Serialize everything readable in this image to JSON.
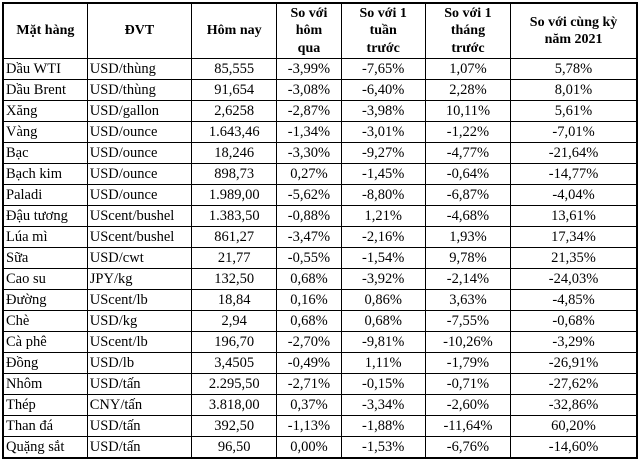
{
  "table": {
    "headers": [
      "Mặt hàng",
      "ĐVT",
      "Hôm nay",
      "So với\nhôm\nqua",
      "So với 1\ntuần\ntrước",
      "So với 1\ntháng\ntrước",
      "So với cùng kỳ\nnăm 2021"
    ],
    "rows": [
      {
        "name": "Dầu WTI",
        "unit": "USD/thùng",
        "today": "85,555",
        "vs_yesterday": "-3,99%",
        "vs_week": "-7,65%",
        "vs_month": "1,07%",
        "vs_2021": "5,78%"
      },
      {
        "name": "Dầu Brent",
        "unit": "USD/thùng",
        "today": "91,654",
        "vs_yesterday": "-3,08%",
        "vs_week": "-6,40%",
        "vs_month": "2,28%",
        "vs_2021": "8,01%"
      },
      {
        "name": "Xăng",
        "unit": "USD/gallon",
        "today": "2,6258",
        "vs_yesterday": "-2,87%",
        "vs_week": "-3,98%",
        "vs_month": "10,11%",
        "vs_2021": "5,61%"
      },
      {
        "name": "Vàng",
        "unit": "USD/ounce",
        "today": "1.643,46",
        "vs_yesterday": "-1,34%",
        "vs_week": "-3,01%",
        "vs_month": "-1,22%",
        "vs_2021": "-7,01%"
      },
      {
        "name": "Bạc",
        "unit": "USD/ounce",
        "today": "18,246",
        "vs_yesterday": "-3,30%",
        "vs_week": "-9,27%",
        "vs_month": "-4,77%",
        "vs_2021": "-21,64%"
      },
      {
        "name": "Bạch kim",
        "unit": "USD/ounce",
        "today": "898,73",
        "vs_yesterday": "0,27%",
        "vs_week": "-1,45%",
        "vs_month": "-0,64%",
        "vs_2021": "-14,77%"
      },
      {
        "name": "Paladi",
        "unit": "USD/ounce",
        "today": "1.989,00",
        "vs_yesterday": "-5,62%",
        "vs_week": "-8,80%",
        "vs_month": "-6,87%",
        "vs_2021": "-4,04%"
      },
      {
        "name": "Đậu tương",
        "unit": "UScent/bushel",
        "today": "1.383,50",
        "vs_yesterday": "-0,88%",
        "vs_week": "1,21%",
        "vs_month": "-4,68%",
        "vs_2021": "13,61%"
      },
      {
        "name": "Lúa mì",
        "unit": "UScent/bushel",
        "today": "861,27",
        "vs_yesterday": "-3,47%",
        "vs_week": "-2,16%",
        "vs_month": "1,93%",
        "vs_2021": "17,34%"
      },
      {
        "name": "Sữa",
        "unit": "USD/cwt",
        "today": "21,77",
        "vs_yesterday": "-0,55%",
        "vs_week": "-1,54%",
        "vs_month": "9,78%",
        "vs_2021": "21,35%"
      },
      {
        "name": "Cao su",
        "unit": "JPY/kg",
        "today": "132,50",
        "vs_yesterday": "0,68%",
        "vs_week": "-3,92%",
        "vs_month": "-2,14%",
        "vs_2021": "-24,03%"
      },
      {
        "name": "Đường",
        "unit": "UScent/lb",
        "today": "18,84",
        "vs_yesterday": "0,16%",
        "vs_week": "0,86%",
        "vs_month": "3,63%",
        "vs_2021": "-4,85%"
      },
      {
        "name": "Chè",
        "unit": "USD/kg",
        "today": "2,94",
        "vs_yesterday": "0,68%",
        "vs_week": "0,68%",
        "vs_month": "-7,55%",
        "vs_2021": "-0,68%"
      },
      {
        "name": "Cà phê",
        "unit": "UScent/lb",
        "today": "196,70",
        "vs_yesterday": "-2,70%",
        "vs_week": "-9,81%",
        "vs_month": "-10,26%",
        "vs_2021": "-3,29%"
      },
      {
        "name": "Đồng",
        "unit": "USD/lb",
        "today": "3,4505",
        "vs_yesterday": "-0,49%",
        "vs_week": "1,11%",
        "vs_month": "-1,79%",
        "vs_2021": "-26,91%"
      },
      {
        "name": "Nhôm",
        "unit": "USD/tấn",
        "today": "2.295,50",
        "vs_yesterday": "-2,71%",
        "vs_week": "-0,15%",
        "vs_month": "-0,71%",
        "vs_2021": "-27,62%"
      },
      {
        "name": "Thép",
        "unit": "CNY/tấn",
        "today": "3.818,00",
        "vs_yesterday": "0,37%",
        "vs_week": "-3,34%",
        "vs_month": "-2,60%",
        "vs_2021": "-32,86%"
      },
      {
        "name": "Than đá",
        "unit": "USD/tấn",
        "today": "392,50",
        "vs_yesterday": "-1,13%",
        "vs_week": "-1,88%",
        "vs_month": "-11,64%",
        "vs_2021": "60,20%"
      },
      {
        "name": "Quặng sắt",
        "unit": "USD/tấn",
        "today": "96,50",
        "vs_yesterday": "0,00%",
        "vs_week": "-1,53%",
        "vs_month": "-6,76%",
        "vs_2021": "-14,60%"
      }
    ]
  }
}
